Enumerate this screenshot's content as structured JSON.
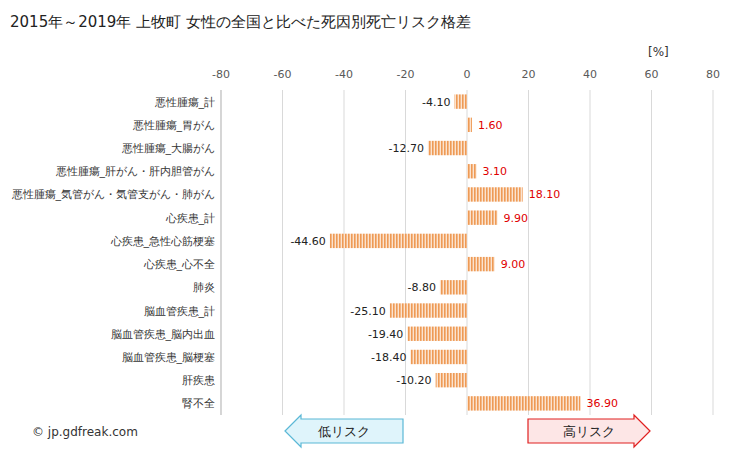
{
  "chart_data": {
    "type": "bar",
    "title": "2015年～2019年 上牧町 女性の全国と比べた死因別死亡リスク格差",
    "xlabel": "[%]",
    "orientation": "horizontal",
    "categories": [
      "悪性腫瘍_計",
      "悪性腫瘍_胃がん",
      "悪性腫瘍_大腸がん",
      "悪性腫瘍_肝がん・肝内胆管がん",
      "悪性腫瘍_気管がん・気管支がん・肺がん",
      "心疾患_計",
      "心疾患_急性心筋梗塞",
      "心疾患_心不全",
      "肺炎",
      "脳血管疾患_計",
      "脳血管疾患_脳内出血",
      "脳血管疾患_脳梗塞",
      "肝疾患",
      "腎不全"
    ],
    "values": [
      -4.1,
      1.6,
      -12.7,
      3.1,
      18.1,
      9.9,
      -44.6,
      9.0,
      -8.8,
      -25.1,
      -19.4,
      -18.4,
      -10.2,
      36.9
    ],
    "value_labels": [
      "-4.10",
      "1.60",
      "-12.70",
      "3.10",
      "18.10",
      "9.90",
      "-44.60",
      "9.00",
      "-8.80",
      "-25.10",
      "-19.40",
      "-18.40",
      "-10.20",
      "36.90"
    ],
    "color": "#ee9a55",
    "xlim": [
      -80,
      80
    ],
    "xticks": [
      -80,
      -60,
      -40,
      -20,
      0,
      20,
      40,
      60,
      80
    ],
    "grid": true,
    "data_labels": true,
    "annotations": [
      "低リスク",
      "高リスク",
      "© jp.gdfreak.com"
    ]
  }
}
